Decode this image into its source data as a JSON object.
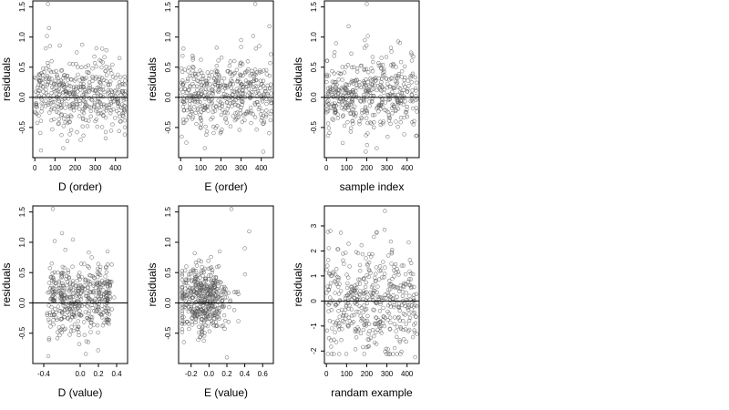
{
  "figure": {
    "title": "",
    "marker": "open-circle",
    "colors": {
      "points": "#555555",
      "axes": "#000000",
      "zero_line": "#000000"
    }
  },
  "chart_data": [
    {
      "type": "scatter",
      "id": "p1",
      "xlabel": "D (order)",
      "ylabel": "residuals",
      "xlim": [
        -10,
        460
      ],
      "ylim": [
        -1.0,
        1.6
      ],
      "xticks": [
        0,
        100,
        200,
        300,
        400
      ],
      "xtick_labels": [
        "0",
        "100",
        "200",
        "300",
        "400"
      ],
      "yticks": [
        -0.5,
        0.0,
        0.5,
        1.0,
        1.5
      ],
      "ytick_labels": [
        "-0.5",
        "0.0",
        "0.5",
        "1.0",
        "1.5"
      ],
      "hline": 0,
      "grid": false,
      "n_points": 450,
      "x_range": [
        0,
        450
      ],
      "y_mean": 0.05,
      "y_sd": 0.3,
      "outliers": [
        {
          "x": 65,
          "y": 1.55
        },
        {
          "x": 70,
          "y": 1.15
        },
        {
          "x": 60,
          "y": 1.02
        },
        {
          "x": 75,
          "y": 0.85
        },
        {
          "x": 355,
          "y": 0.78
        },
        {
          "x": 30,
          "y": -0.88
        }
      ]
    },
    {
      "type": "scatter",
      "id": "p2",
      "xlabel": "E (order)",
      "ylabel": "residuals",
      "xlim": [
        -10,
        460
      ],
      "ylim": [
        -1.0,
        1.6
      ],
      "xticks": [
        0,
        100,
        200,
        300,
        400
      ],
      "xtick_labels": [
        "0",
        "100",
        "200",
        "300",
        "400"
      ],
      "yticks": [
        -0.5,
        0.0,
        0.5,
        1.0,
        1.5
      ],
      "ytick_labels": [
        "-0.5",
        "0.0",
        "0.5",
        "1.0",
        "1.5"
      ],
      "hline": 0,
      "grid": false,
      "n_points": 450,
      "x_range": [
        0,
        450
      ],
      "y_mean": 0.05,
      "y_sd": 0.3,
      "outliers": [
        {
          "x": 370,
          "y": 1.55
        },
        {
          "x": 440,
          "y": 1.18
        },
        {
          "x": 360,
          "y": 1.02
        },
        {
          "x": 300,
          "y": 0.95
        },
        {
          "x": 390,
          "y": 0.85
        },
        {
          "x": 410,
          "y": -0.9
        }
      ]
    },
    {
      "type": "scatter",
      "id": "p3",
      "xlabel": "sample index",
      "ylabel": "residuals",
      "xlim": [
        -10,
        460
      ],
      "ylim": [
        -1.0,
        1.6
      ],
      "xticks": [
        0,
        100,
        200,
        300,
        400
      ],
      "xtick_labels": [
        "0",
        "100",
        "200",
        "300",
        "400"
      ],
      "yticks": [
        -0.5,
        0.0,
        0.5,
        1.0,
        1.5
      ],
      "ytick_labels": [
        "-0.5",
        "0.0",
        "0.5",
        "1.0",
        "1.5"
      ],
      "hline": 0,
      "grid": false,
      "n_points": 450,
      "x_range": [
        0,
        450
      ],
      "y_mean": 0.05,
      "y_sd": 0.3,
      "outliers": [
        {
          "x": 200,
          "y": 1.55
        },
        {
          "x": 110,
          "y": 1.18
        },
        {
          "x": 205,
          "y": 1.02
        },
        {
          "x": 190,
          "y": 0.95
        },
        {
          "x": 320,
          "y": 0.82
        },
        {
          "x": 195,
          "y": -0.9
        }
      ]
    },
    {
      "type": "scatter",
      "id": "p4",
      "xlabel": "D (value)",
      "ylabel": "residuals",
      "xlim": [
        -0.52,
        0.52
      ],
      "ylim": [
        -1.0,
        1.6
      ],
      "xticks": [
        -0.4,
        0.0,
        0.2,
        0.4
      ],
      "xtick_labels": [
        "-0.4",
        "0.0",
        "0.2",
        "0.4"
      ],
      "yticks": [
        -0.5,
        0.0,
        0.5,
        1.0,
        1.5
      ],
      "ytick_labels": [
        "-0.5",
        "0.0",
        "0.5",
        "1.0",
        "1.5"
      ],
      "hline": 0,
      "grid": false,
      "n_points": 450,
      "x_range": [
        -0.48,
        0.48
      ],
      "y_mean": 0.05,
      "y_sd": 0.3,
      "x_clusters": [
        -0.3,
        -0.2,
        -0.1,
        0.0,
        0.1,
        0.2,
        0.3
      ],
      "outliers": [
        {
          "x": -0.3,
          "y": 1.55
        },
        {
          "x": -0.2,
          "y": 1.15
        },
        {
          "x": -0.28,
          "y": 1.02
        },
        {
          "x": 0.3,
          "y": 0.85
        },
        {
          "x": -0.35,
          "y": -0.88
        }
      ]
    },
    {
      "type": "scatter",
      "id": "p5",
      "xlabel": "E (value)",
      "ylabel": "residuals",
      "xlim": [
        -0.34,
        0.72
      ],
      "ylim": [
        -1.0,
        1.6
      ],
      "xticks": [
        -0.2,
        0.0,
        0.2,
        0.4,
        0.6
      ],
      "xtick_labels": [
        "-0.2",
        "0.0",
        "0.2",
        "0.4",
        "0.6"
      ],
      "yticks": [
        -0.5,
        0.0,
        0.5,
        1.0,
        1.5
      ],
      "ytick_labels": [
        "-0.5",
        "0.0",
        "0.5",
        "1.0",
        "1.5"
      ],
      "hline": 0,
      "grid": false,
      "n_points": 450,
      "x_range": [
        -0.3,
        0.68
      ],
      "y_mean": 0.05,
      "y_sd": 0.3,
      "x_center": -0.07,
      "outliers": [
        {
          "x": 0.25,
          "y": 1.55
        },
        {
          "x": 0.45,
          "y": 1.18
        },
        {
          "x": 0.4,
          "y": 0.9
        },
        {
          "x": 0.12,
          "y": 0.85
        },
        {
          "x": 0.2,
          "y": -0.9
        }
      ]
    },
    {
      "type": "scatter",
      "id": "p6",
      "xlabel": "randam example",
      "ylabel": "residuals",
      "xlim": [
        -10,
        460
      ],
      "ylim": [
        -2.5,
        3.8
      ],
      "xticks": [
        0,
        100,
        200,
        300,
        400
      ],
      "xtick_labels": [
        "0",
        "100",
        "200",
        "300",
        "400"
      ],
      "yticks": [
        -2,
        -1,
        0,
        1,
        2,
        3
      ],
      "ytick_labels": [
        "-2",
        "-1",
        "0",
        "1",
        "2",
        "3"
      ],
      "hline": 0,
      "grid": false,
      "n_points": 450,
      "x_range": [
        0,
        450
      ],
      "y_mean": 0.0,
      "y_sd": 1.0,
      "outliers": [
        {
          "x": 290,
          "y": 3.6
        },
        {
          "x": 20,
          "y": 2.8
        },
        {
          "x": 250,
          "y": 2.75
        },
        {
          "x": 440,
          "y": -2.25
        }
      ]
    }
  ]
}
